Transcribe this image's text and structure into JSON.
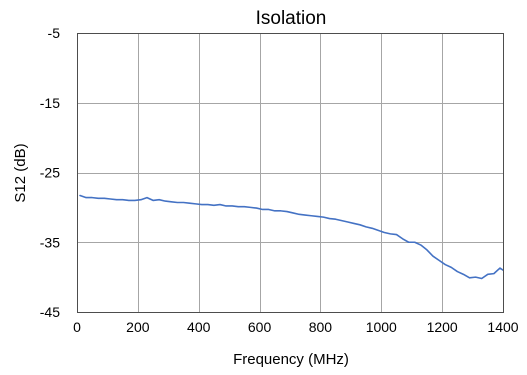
{
  "chart_data": {
    "type": "line",
    "title": "Isolation",
    "xlabel": "Frequency (MHz)",
    "ylabel": "S12 (dB)",
    "xlim": [
      0,
      1400
    ],
    "ylim": [
      -45,
      -5
    ],
    "xticks": [
      0,
      200,
      400,
      600,
      800,
      1000,
      1200,
      1400
    ],
    "yticks": [
      -5,
      -15,
      -25,
      -35,
      -45
    ],
    "grid": true,
    "legend": "none",
    "series": [
      {
        "color": "#4472c4",
        "x": [
          10,
          30,
          50,
          70,
          90,
          110,
          130,
          150,
          170,
          190,
          210,
          230,
          250,
          270,
          290,
          310,
          330,
          350,
          370,
          390,
          410,
          430,
          450,
          470,
          490,
          510,
          530,
          550,
          570,
          590,
          610,
          630,
          650,
          670,
          690,
          710,
          730,
          750,
          770,
          790,
          810,
          830,
          850,
          870,
          890,
          910,
          930,
          950,
          970,
          990,
          1010,
          1030,
          1050,
          1070,
          1090,
          1110,
          1130,
          1150,
          1170,
          1190,
          1210,
          1230,
          1250,
          1270,
          1290,
          1310,
          1330,
          1350,
          1370,
          1390,
          1400
        ],
        "y": [
          -28.3,
          -28.6,
          -28.6,
          -28.7,
          -28.7,
          -28.8,
          -28.9,
          -28.9,
          -29.0,
          -29.0,
          -28.9,
          -28.6,
          -29.0,
          -28.9,
          -29.1,
          -29.2,
          -29.3,
          -29.3,
          -29.4,
          -29.5,
          -29.6,
          -29.6,
          -29.7,
          -29.6,
          -29.8,
          -29.8,
          -29.9,
          -29.9,
          -30.0,
          -30.1,
          -30.3,
          -30.3,
          -30.5,
          -30.5,
          -30.6,
          -30.8,
          -31.0,
          -31.1,
          -31.2,
          -31.3,
          -31.4,
          -31.6,
          -31.7,
          -31.9,
          -32.1,
          -32.3,
          -32.5,
          -32.8,
          -33.0,
          -33.3,
          -33.6,
          -33.8,
          -33.9,
          -34.5,
          -35.0,
          -35.0,
          -35.4,
          -36.1,
          -37.0,
          -37.6,
          -38.2,
          -38.6,
          -39.2,
          -39.6,
          -40.1,
          -40.0,
          -40.2,
          -39.6,
          -39.5,
          -38.7,
          -39.0
        ]
      }
    ]
  }
}
